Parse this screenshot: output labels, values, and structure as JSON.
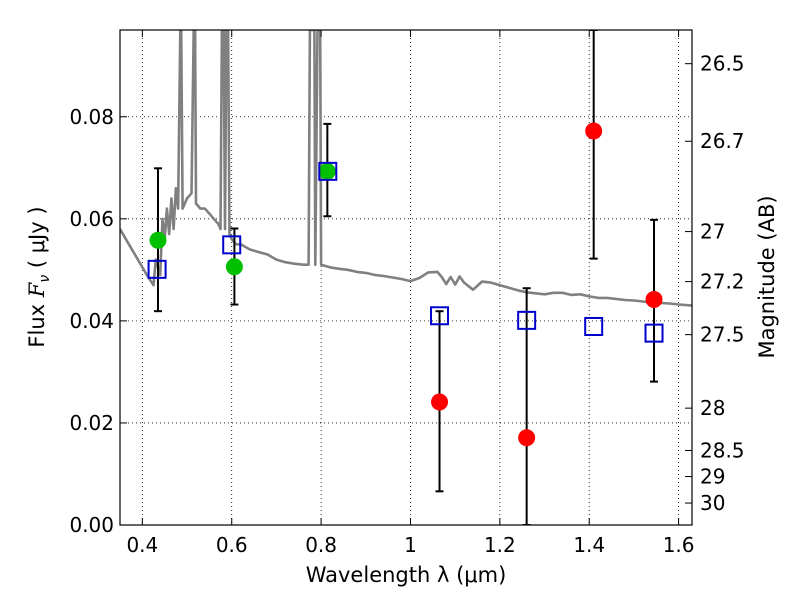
{
  "chart_data": {
    "type": "scatter",
    "xlabel": "Wavelength  λ (μm)",
    "ylabel_prefix": "Flux  ",
    "ylabel_var": "F",
    "ylabel_sub": "ν",
    "ylabel_suffix": "  ( μJy )",
    "ylabel_right": "Magnitude (AB)",
    "xlim": [
      0.35,
      1.63
    ],
    "ylim": [
      0.0,
      0.097
    ],
    "grid": true,
    "x_ticks": [
      {
        "value": 0.4,
        "label": "0.4"
      },
      {
        "value": 0.6,
        "label": "0.6"
      },
      {
        "value": 0.8,
        "label": "0.8"
      },
      {
        "value": 1.0,
        "label": "1"
      },
      {
        "value": 1.2,
        "label": "1.2"
      },
      {
        "value": 1.4,
        "label": "1.4"
      },
      {
        "value": 1.6,
        "label": "1.6"
      }
    ],
    "y_ticks": [
      {
        "value": 0.0,
        "label": "0.00"
      },
      {
        "value": 0.02,
        "label": "0.02"
      },
      {
        "value": 0.04,
        "label": "0.04"
      },
      {
        "value": 0.06,
        "label": "0.06"
      },
      {
        "value": 0.08,
        "label": "0.08"
      }
    ],
    "right_ticks": [
      {
        "flux": 0.0904,
        "label": "26.5"
      },
      {
        "flux": 0.0752,
        "label": "26.7"
      },
      {
        "flux": 0.0575,
        "label": "27"
      },
      {
        "flux": 0.0477,
        "label": "27.2"
      },
      {
        "flux": 0.0373,
        "label": "27.5"
      },
      {
        "flux": 0.0229,
        "label": "28"
      },
      {
        "flux": 0.0146,
        "label": "28.5"
      },
      {
        "flux": 0.0095,
        "label": "29"
      },
      {
        "flux": 0.0043,
        "label": "30"
      }
    ],
    "series": [
      {
        "marker": "circle",
        "color": "#00c000",
        "points": [
          {
            "x": 0.435,
            "y": 0.0558
          },
          {
            "x": 0.606,
            "y": 0.0506
          },
          {
            "x": 0.814,
            "y": 0.0693
          }
        ]
      },
      {
        "marker": "circle",
        "color": "#ff0000",
        "points": [
          {
            "x": 1.065,
            "y": 0.0241
          },
          {
            "x": 1.26,
            "y": 0.0171
          },
          {
            "x": 1.41,
            "y": 0.0772
          },
          {
            "x": 1.545,
            "y": 0.0442
          }
        ]
      },
      {
        "marker": "open-square",
        "color": "#0000cc",
        "points": [
          {
            "x": 0.433,
            "y": 0.0501
          },
          {
            "x": 0.6,
            "y": 0.0549
          },
          {
            "x": 0.815,
            "y": 0.0693
          },
          {
            "x": 1.065,
            "y": 0.041
          },
          {
            "x": 1.26,
            "y": 0.0401
          },
          {
            "x": 1.41,
            "y": 0.0389
          },
          {
            "x": 1.545,
            "y": 0.0376
          }
        ]
      }
    ],
    "error_bars": [
      {
        "x": 0.435,
        "low": 0.0419,
        "high": 0.0699
      },
      {
        "x": 0.606,
        "low": 0.0432,
        "high": 0.0581
      },
      {
        "x": 0.814,
        "low": 0.0605,
        "high": 0.0786
      },
      {
        "x": 1.065,
        "low": 0.0066,
        "high": 0.0419
      },
      {
        "x": 1.26,
        "low": 0.0,
        "high": 0.0464
      },
      {
        "x": 1.41,
        "low": 0.0522,
        "high": 0.097
      },
      {
        "x": 1.545,
        "low": 0.0281,
        "high": 0.0598
      }
    ],
    "model_spectrum": {
      "color": "#808080",
      "points": [
        [
          0.35,
          0.058
        ],
        [
          0.37,
          0.055
        ],
        [
          0.39,
          0.052
        ],
        [
          0.41,
          0.049
        ],
        [
          0.425,
          0.047
        ],
        [
          0.43,
          0.052
        ],
        [
          0.44,
          0.049
        ],
        [
          0.445,
          0.06
        ],
        [
          0.45,
          0.056
        ],
        [
          0.455,
          0.062
        ],
        [
          0.46,
          0.057
        ],
        [
          0.465,
          0.064
        ],
        [
          0.47,
          0.058
        ],
        [
          0.475,
          0.066
        ],
        [
          0.48,
          0.062
        ],
        [
          0.485,
          0.097
        ],
        [
          0.487,
          0.097
        ],
        [
          0.49,
          0.062
        ],
        [
          0.5,
          0.064
        ],
        [
          0.51,
          0.065
        ],
        [
          0.515,
          0.097
        ],
        [
          0.518,
          0.097
        ],
        [
          0.52,
          0.063
        ],
        [
          0.53,
          0.062
        ],
        [
          0.54,
          0.062
        ],
        [
          0.55,
          0.061
        ],
        [
          0.56,
          0.06
        ],
        [
          0.57,
          0.059
        ],
        [
          0.575,
          0.058
        ],
        [
          0.578,
          0.097
        ],
        [
          0.582,
          0.097
        ],
        [
          0.585,
          0.058
        ],
        [
          0.588,
          0.097
        ],
        [
          0.592,
          0.097
        ],
        [
          0.595,
          0.057
        ],
        [
          0.6,
          0.056
        ],
        [
          0.61,
          0.055
        ],
        [
          0.62,
          0.055
        ],
        [
          0.64,
          0.054
        ],
        [
          0.66,
          0.0535
        ],
        [
          0.68,
          0.053
        ],
        [
          0.7,
          0.052
        ],
        [
          0.72,
          0.0515
        ],
        [
          0.74,
          0.0512
        ],
        [
          0.76,
          0.051
        ],
        [
          0.772,
          0.051
        ],
        [
          0.775,
          0.097
        ],
        [
          0.785,
          0.097
        ],
        [
          0.787,
          0.051
        ],
        [
          0.792,
          0.097
        ],
        [
          0.798,
          0.097
        ],
        [
          0.8,
          0.051
        ],
        [
          0.82,
          0.0505
        ],
        [
          0.84,
          0.0502
        ],
        [
          0.86,
          0.05
        ],
        [
          0.88,
          0.0496
        ],
        [
          0.9,
          0.0494
        ],
        [
          0.92,
          0.049
        ],
        [
          0.94,
          0.0488
        ],
        [
          0.96,
          0.0485
        ],
        [
          0.98,
          0.0482
        ],
        [
          1.0,
          0.0478
        ],
        [
          1.02,
          0.0484
        ],
        [
          1.04,
          0.0495
        ],
        [
          1.06,
          0.0496
        ],
        [
          1.07,
          0.0486
        ],
        [
          1.08,
          0.0472
        ],
        [
          1.09,
          0.0486
        ],
        [
          1.1,
          0.0471
        ],
        [
          1.11,
          0.0487
        ],
        [
          1.12,
          0.0475
        ],
        [
          1.14,
          0.0461
        ],
        [
          1.16,
          0.0477
        ],
        [
          1.18,
          0.0475
        ],
        [
          1.2,
          0.047
        ],
        [
          1.22,
          0.0465
        ],
        [
          1.24,
          0.046
        ],
        [
          1.26,
          0.0456
        ],
        [
          1.28,
          0.0454
        ],
        [
          1.3,
          0.0452
        ],
        [
          1.32,
          0.0455
        ],
        [
          1.34,
          0.0455
        ],
        [
          1.36,
          0.0451
        ],
        [
          1.38,
          0.0452
        ],
        [
          1.4,
          0.0448
        ],
        [
          1.42,
          0.0445
        ],
        [
          1.44,
          0.0445
        ],
        [
          1.46,
          0.0443
        ],
        [
          1.48,
          0.0441
        ],
        [
          1.5,
          0.044
        ],
        [
          1.52,
          0.0438
        ],
        [
          1.54,
          0.0436
        ],
        [
          1.56,
          0.0435
        ],
        [
          1.58,
          0.0434
        ],
        [
          1.6,
          0.0432
        ],
        [
          1.63,
          0.043
        ]
      ]
    }
  }
}
